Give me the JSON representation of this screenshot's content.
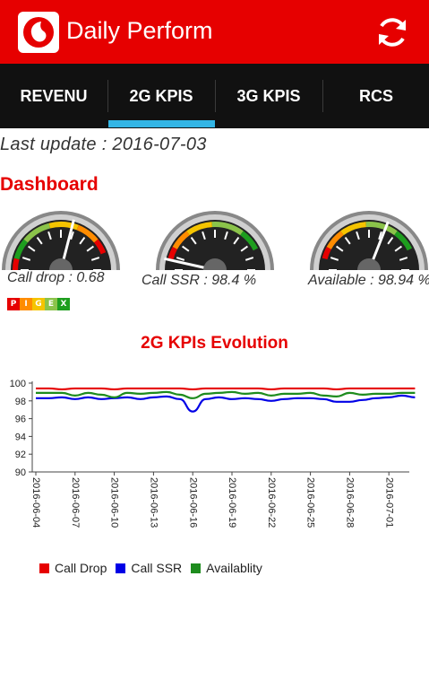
{
  "app": {
    "title": "Daily Perform",
    "logo_icon": "vodafone-logo",
    "refresh_icon": "refresh-icon",
    "accent": "#e60000"
  },
  "tabs": [
    {
      "label": "REVENU",
      "active": false
    },
    {
      "label": "2G KPIS",
      "active": true
    },
    {
      "label": "3G KPIS",
      "active": false
    },
    {
      "label": "RCS",
      "active": false
    }
  ],
  "last_update": "Last update : 2016-07-03",
  "dashboard": {
    "title": "Dashboard",
    "gauges": [
      {
        "label": "Call drop : 0.68",
        "value": 0.68
      },
      {
        "label": "Call SSR : 98.4 %",
        "value": 98.4
      },
      {
        "label": "Available : 98.94 %",
        "value": 98.94
      }
    ],
    "pigex": [
      {
        "letter": "P",
        "color": "#e60000"
      },
      {
        "letter": "I",
        "color": "#ff8c00"
      },
      {
        "letter": "G",
        "color": "#f5c400"
      },
      {
        "letter": "E",
        "color": "#8bc34a"
      },
      {
        "letter": "X",
        "color": "#1e9e1e"
      }
    ]
  },
  "chart_data": {
    "type": "line",
    "title": "2G KPIs Evolution",
    "xlabel": "",
    "ylabel": "",
    "ylim": [
      90,
      100
    ],
    "yticks": [
      90,
      92,
      94,
      96,
      98,
      100
    ],
    "x_tick_labels": [
      "2016-06-04",
      "2016-06-07",
      "2016-06-10",
      "2016-06-13",
      "2016-06-16",
      "2016-06-19",
      "2016-06-22",
      "2016-06-25",
      "2016-06-28",
      "2016-07-01"
    ],
    "x": [
      "2016-06-04",
      "2016-06-05",
      "2016-06-06",
      "2016-06-07",
      "2016-06-08",
      "2016-06-09",
      "2016-06-10",
      "2016-06-11",
      "2016-06-12",
      "2016-06-13",
      "2016-06-14",
      "2016-06-15",
      "2016-06-16",
      "2016-06-17",
      "2016-06-18",
      "2016-06-19",
      "2016-06-20",
      "2016-06-21",
      "2016-06-22",
      "2016-06-23",
      "2016-06-24",
      "2016-06-25",
      "2016-06-26",
      "2016-06-27",
      "2016-06-28",
      "2016-06-29",
      "2016-06-30",
      "2016-07-01",
      "2016-07-02",
      "2016-07-03"
    ],
    "series": [
      {
        "name": "Call Drop",
        "color": "#e60000",
        "values": [
          99.4,
          99.4,
          99.3,
          99.4,
          99.4,
          99.4,
          99.3,
          99.4,
          99.4,
          99.4,
          99.4,
          99.4,
          99.3,
          99.4,
          99.4,
          99.4,
          99.4,
          99.4,
          99.3,
          99.4,
          99.4,
          99.4,
          99.4,
          99.3,
          99.4,
          99.4,
          99.4,
          99.4,
          99.4,
          99.4
        ]
      },
      {
        "name": "Call SSR",
        "color": "#0000e6",
        "values": [
          98.3,
          98.3,
          98.4,
          98.2,
          98.4,
          98.2,
          98.3,
          98.4,
          98.2,
          98.4,
          98.5,
          98.2,
          96.8,
          98.2,
          98.4,
          98.2,
          98.3,
          98.2,
          98.0,
          98.2,
          98.3,
          98.3,
          98.2,
          97.9,
          97.9,
          98.1,
          98.3,
          98.4,
          98.6,
          98.4
        ]
      },
      {
        "name": "Availablity",
        "color": "#1e8c1e",
        "values": [
          98.9,
          98.9,
          98.9,
          98.6,
          98.9,
          98.7,
          98.4,
          98.9,
          98.8,
          98.9,
          99.0,
          98.7,
          98.3,
          98.8,
          98.9,
          99.0,
          98.8,
          98.9,
          98.6,
          98.8,
          98.8,
          98.9,
          98.6,
          98.5,
          98.9,
          98.7,
          98.8,
          98.8,
          98.9,
          98.9
        ]
      }
    ],
    "legend": "bottom-left",
    "grid": false
  }
}
